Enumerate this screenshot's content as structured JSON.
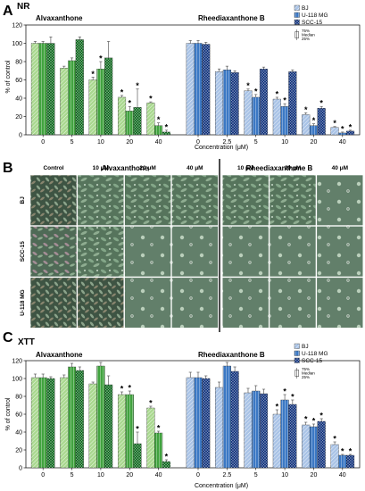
{
  "colors": {
    "green_bj": "#a9d88f",
    "green_u118": "#41a33f",
    "green_scc": "#136b22",
    "blue_bj": "#a9c3e6",
    "blue_u118": "#3b78c4",
    "blue_scc": "#14357e"
  },
  "legend": {
    "series": [
      "BJ",
      "U-118 MG",
      "SCC-15"
    ],
    "box_labels": [
      "75%",
      "Median",
      "25%"
    ]
  },
  "chart_data": [
    {
      "panel": "A",
      "title": "NR",
      "type": "bar",
      "ylabel": "% of control",
      "xlabel": "Concentration (μM)",
      "ylim": [
        0,
        120
      ],
      "yticks": [
        0,
        20,
        40,
        60,
        80,
        100,
        120
      ],
      "groups": [
        {
          "compound": "Alvaxanthone",
          "categories": [
            "0",
            "5",
            "10",
            "20",
            "40"
          ],
          "series": [
            {
              "name": "BJ",
              "values": [
                100,
                73,
                60,
                41,
                35
              ],
              "errors": [
                2,
                2,
                3,
                2,
                1
              ],
              "significant": [
                false,
                false,
                true,
                true,
                true
              ]
            },
            {
              "name": "U-118 MG",
              "values": [
                100,
                81,
                72,
                26,
                10
              ],
              "errors": [
                2,
                3,
                8,
                5,
                3
              ],
              "significant": [
                false,
                false,
                true,
                true,
                true
              ]
            },
            {
              "name": "SCC-15",
              "values": [
                100,
                104,
                84,
                30,
                3
              ],
              "errors": [
                7,
                3,
                18,
                20,
                2
              ],
              "significant": [
                false,
                false,
                false,
                true,
                true
              ]
            }
          ]
        },
        {
          "compound": "Rheediaxanthone B",
          "categories": [
            "0",
            "2.5",
            "5",
            "10",
            "20",
            "40"
          ],
          "series": [
            {
              "name": "BJ",
              "values": [
                100,
                69,
                48,
                39,
                22,
                8
              ],
              "errors": [
                3,
                3,
                2,
                2,
                2,
                1
              ],
              "significant": [
                false,
                false,
                true,
                true,
                true,
                true
              ]
            },
            {
              "name": "U-118 MG",
              "values": [
                100,
                71,
                41,
                31,
                10,
                2
              ],
              "errors": [
                3,
                4,
                3,
                3,
                2,
                1
              ],
              "significant": [
                false,
                false,
                true,
                true,
                true,
                true
              ]
            },
            {
              "name": "SCC-15",
              "values": [
                99,
                68,
                72,
                69,
                29,
                4
              ],
              "errors": [
                2,
                2,
                2,
                2,
                2,
                1
              ],
              "significant": [
                false,
                false,
                false,
                false,
                true,
                true
              ]
            }
          ]
        }
      ]
    },
    {
      "panel": "C",
      "title": "XTT",
      "type": "bar",
      "ylabel": "% of control",
      "xlabel": "Concentration (μM)",
      "ylim": [
        0,
        120
      ],
      "yticks": [
        0,
        20,
        40,
        60,
        80,
        100,
        120
      ],
      "groups": [
        {
          "compound": "Alvaxanthone",
          "categories": [
            "0",
            "5",
            "10",
            "20",
            "40"
          ],
          "series": [
            {
              "name": "BJ",
              "values": [
                101,
                101,
                94,
                82,
                67
              ],
              "errors": [
                4,
                3,
                2,
                3,
                2
              ],
              "significant": [
                false,
                false,
                false,
                true,
                true
              ]
            },
            {
              "name": "U-118 MG",
              "values": [
                101,
                113,
                114,
                82,
                39
              ],
              "errors": [
                4,
                4,
                4,
                4,
                2
              ],
              "significant": [
                false,
                false,
                false,
                true,
                true
              ]
            },
            {
              "name": "SCC-15",
              "values": [
                100,
                109,
                93,
                27,
                7
              ],
              "errors": [
                2,
                4,
                10,
                13,
                2
              ],
              "significant": [
                false,
                false,
                false,
                true,
                true
              ]
            }
          ]
        },
        {
          "compound": "Rheediaxanthone B",
          "categories": [
            "0",
            "2.5",
            "5",
            "10",
            "20",
            "40"
          ],
          "series": [
            {
              "name": "BJ",
              "values": [
                101,
                90,
                84,
                60,
                48,
                26
              ],
              "errors": [
                6,
                6,
                5,
                5,
                3,
                3
              ],
              "significant": [
                false,
                false,
                false,
                true,
                true,
                true
              ]
            },
            {
              "name": "U-118 MG",
              "values": [
                101,
                114,
                86,
                76,
                46,
                14
              ],
              "errors": [
                6,
                4,
                6,
                6,
                3,
                1
              ],
              "significant": [
                false,
                false,
                false,
                true,
                true,
                true
              ]
            },
            {
              "name": "SCC-15",
              "values": [
                100,
                108,
                83,
                71,
                52,
                14
              ],
              "errors": [
                3,
                5,
                5,
                5,
                3,
                1
              ],
              "significant": [
                false,
                false,
                false,
                true,
                true,
                true
              ]
            }
          ]
        }
      ]
    }
  ],
  "panel_b": {
    "letter": "B",
    "compounds": [
      "Alvaxanthone",
      "Rheediaxanthone B"
    ],
    "columns": [
      "Control",
      "10 μM",
      "20 μM",
      "40 μM",
      "10 μM",
      "20 μM",
      "40 μM"
    ],
    "rows": [
      "BJ",
      "SCC-15",
      "U-118 MG"
    ]
  },
  "panel_letters": {
    "a": "A",
    "b": "B",
    "c": "C"
  }
}
